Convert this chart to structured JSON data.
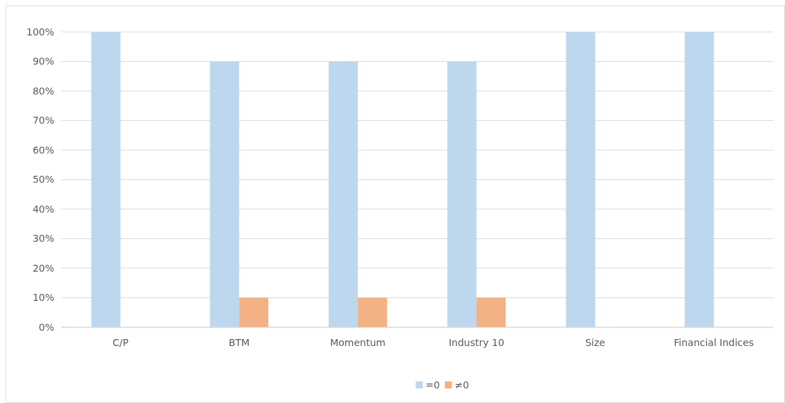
{
  "chart_data": {
    "type": "bar",
    "categories": [
      "C/P",
      "BTM",
      "Momentum",
      "Industry 10",
      "Size",
      "Financial Indices"
    ],
    "series": [
      {
        "name": "=0",
        "color": "#bdd7ee",
        "values": [
          100,
          90,
          90,
          90,
          100,
          100
        ]
      },
      {
        "name": "≠0",
        "color": "#f4b183",
        "values": [
          0,
          10,
          10,
          10,
          0,
          0
        ]
      }
    ],
    "ylim": [
      0,
      100
    ],
    "yticks": [
      {
        "value": 0,
        "label": "0%"
      },
      {
        "value": 10,
        "label": "10%"
      },
      {
        "value": 20,
        "label": "20%"
      },
      {
        "value": 30,
        "label": "30%"
      },
      {
        "value": 40,
        "label": "40%"
      },
      {
        "value": 50,
        "label": "50%"
      },
      {
        "value": 60,
        "label": "60%"
      },
      {
        "value": 70,
        "label": "70%"
      },
      {
        "value": 80,
        "label": "80%"
      },
      {
        "value": 90,
        "label": "90%"
      },
      {
        "value": 100,
        "label": "100%"
      }
    ],
    "grid": "y",
    "legend": "bottom"
  }
}
